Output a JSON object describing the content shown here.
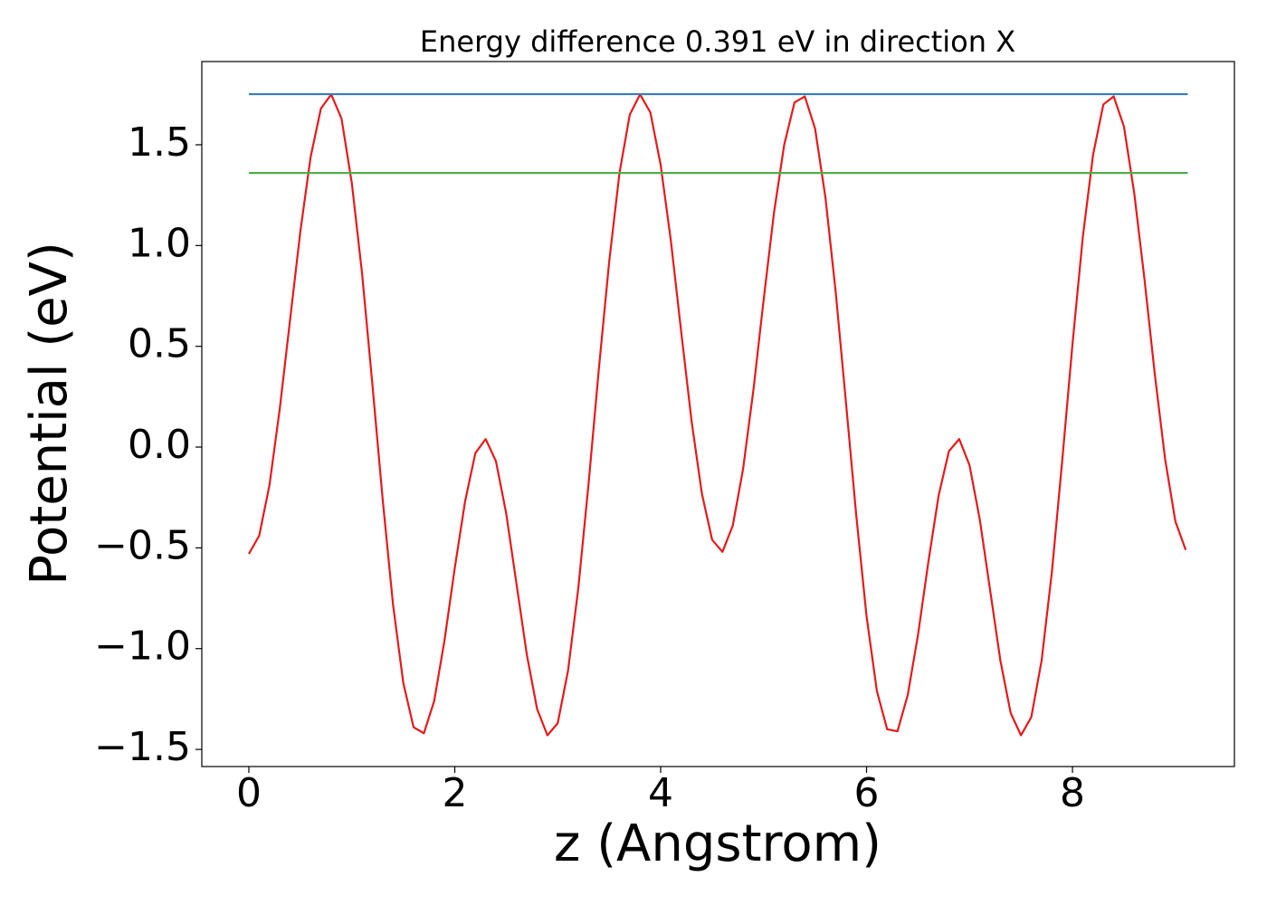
{
  "chart_data": {
    "type": "line",
    "title": "Energy difference 0.391 eV in direction X",
    "xlabel": "z (Angstrom)",
    "ylabel": "Potential (eV)",
    "xlim": [
      -0.457,
      9.573
    ],
    "ylim": [
      -1.585,
      1.913
    ],
    "xticks": [
      0,
      2,
      4,
      6,
      8
    ],
    "yticks": [
      {
        "value": -1.5,
        "label": "−1.5"
      },
      {
        "value": -1,
        "label": "−1.0"
      },
      {
        "value": -0.5,
        "label": "−0.5"
      },
      {
        "value": 0,
        "label": "0.0"
      },
      {
        "value": 0.5,
        "label": "0.5"
      },
      {
        "value": 1,
        "label": "1.0"
      },
      {
        "value": 1.5,
        "label": "1.5"
      }
    ],
    "grid": false,
    "series": [
      {
        "color": "#e41a1c",
        "x": [
          0,
          0.1,
          0.2,
          0.3,
          0.4,
          0.5,
          0.6,
          0.7,
          0.8,
          0.9,
          1,
          1.1,
          1.2,
          1.3,
          1.4,
          1.5,
          1.6,
          1.7,
          1.8,
          1.9,
          2,
          2.1,
          2.2,
          2.3,
          2.4,
          2.5,
          2.6,
          2.7,
          2.8,
          2.9,
          3,
          3.1,
          3.2,
          3.3,
          3.4,
          3.5,
          3.6,
          3.7,
          3.8,
          3.9,
          4,
          4.1,
          4.2,
          4.3,
          4.4,
          4.5,
          4.6,
          4.7,
          4.8,
          4.9,
          5,
          5.1,
          5.2,
          5.3,
          5.4,
          5.5,
          5.6,
          5.7,
          5.8,
          5.9,
          6,
          6.1,
          6.2,
          6.3,
          6.4,
          6.5,
          6.6,
          6.7,
          6.8,
          6.9,
          7,
          7.1,
          7.2,
          7.3,
          7.4,
          7.5,
          7.6,
          7.7,
          7.8,
          7.9,
          8,
          8.1,
          8.2,
          8.3,
          8.4,
          8.5,
          8.6,
          8.7,
          8.8,
          8.9,
          9,
          9.1
        ],
        "values": [
          -0.53,
          -0.44,
          -0.19,
          0.19,
          0.63,
          1.07,
          1.44,
          1.68,
          1.75,
          1.63,
          1.31,
          0.86,
          0.31,
          -0.26,
          -0.78,
          -1.17,
          -1.39,
          -1.42,
          -1.26,
          -0.96,
          -0.6,
          -0.27,
          -0.03,
          0.04,
          -0.07,
          -0.33,
          -0.68,
          -1.03,
          -1.3,
          -1.43,
          -1.37,
          -1.11,
          -0.7,
          -0.18,
          0.39,
          0.92,
          1.36,
          1.65,
          1.75,
          1.66,
          1.4,
          1.02,
          0.57,
          0.13,
          -0.23,
          -0.46,
          -0.52,
          -0.39,
          -0.11,
          0.28,
          0.73,
          1.16,
          1.5,
          1.71,
          1.74,
          1.58,
          1.24,
          0.77,
          0.22,
          -0.34,
          -0.84,
          -1.21,
          -1.4,
          -1.41,
          -1.23,
          -0.93,
          -0.57,
          -0.24,
          -0.02,
          0.04,
          -0.09,
          -0.36,
          -0.71,
          -1.06,
          -1.32,
          -1.43,
          -1.34,
          -1.06,
          -0.62,
          -0.07,
          0.51,
          1.04,
          1.45,
          1.7,
          1.74,
          1.59,
          1.26,
          0.83,
          0.36,
          -0.06,
          -0.37,
          -0.51
        ]
      },
      {
        "color": "#377eb8",
        "x": [
          0,
          9.12
        ],
        "values": [
          1.751,
          1.751
        ]
      },
      {
        "color": "#4daf4a",
        "x": [
          0,
          9.12
        ],
        "values": [
          1.36,
          1.36
        ]
      }
    ]
  }
}
